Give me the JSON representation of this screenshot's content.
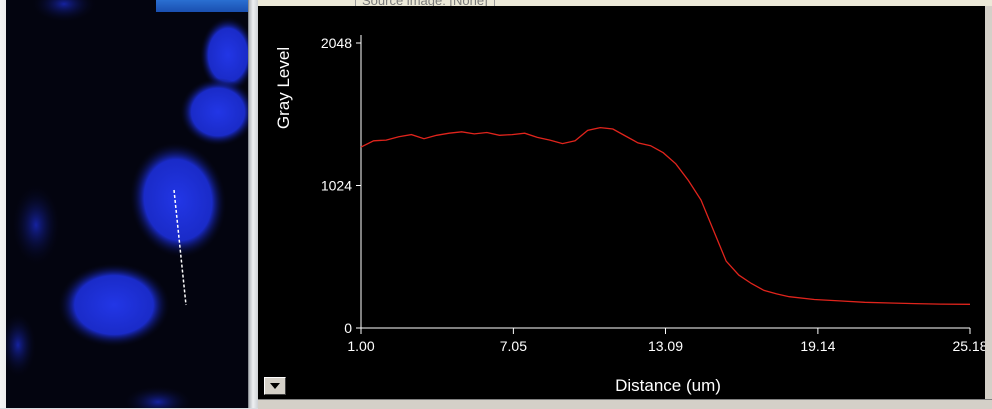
{
  "source_label": "Source image: [None]",
  "colors": {
    "plot_background": "#000000",
    "axis": "#ffffff",
    "line": "#e0241c",
    "nucleus": "#1a2cd6",
    "measure_line": "#ffffff"
  },
  "icons": {
    "dropdown": "chevron-down-icon"
  },
  "chart_data": {
    "type": "line",
    "xlabel": "Distance (um)",
    "ylabel": "Gray Level",
    "xlim": [
      1.0,
      25.18
    ],
    "ylim": [
      0,
      2048
    ],
    "x_tick_labels": [
      "1.00",
      "7.05",
      "13.09",
      "19.14",
      "25.18"
    ],
    "x_ticks": [
      1.0,
      7.05,
      13.09,
      19.14,
      25.18
    ],
    "y_tick_labels": [
      "0",
      "1024",
      "2048"
    ],
    "y_ticks": [
      0,
      1024,
      2048
    ],
    "grid": false,
    "series": [
      {
        "x": [
          1.0,
          1.5,
          2.0,
          2.5,
          3.0,
          3.5,
          4.0,
          4.5,
          5.0,
          5.5,
          6.0,
          6.5,
          7.0,
          7.5,
          8.0,
          8.5,
          9.0,
          9.5,
          10.0,
          10.5,
          11.0,
          11.5,
          12.0,
          12.5,
          13.0,
          13.5,
          14.0,
          14.5,
          15.0,
          15.5,
          16.0,
          16.5,
          17.0,
          17.5,
          18.0,
          19.0,
          20.0,
          21.0,
          22.0,
          23.0,
          24.0,
          25.18
        ],
        "y": [
          1300,
          1345,
          1350,
          1375,
          1390,
          1360,
          1385,
          1400,
          1410,
          1395,
          1405,
          1385,
          1390,
          1400,
          1370,
          1350,
          1325,
          1345,
          1420,
          1440,
          1430,
          1380,
          1330,
          1310,
          1260,
          1180,
          1060,
          920,
          700,
          480,
          380,
          320,
          270,
          245,
          225,
          205,
          195,
          185,
          180,
          175,
          172,
          170
        ]
      }
    ]
  }
}
